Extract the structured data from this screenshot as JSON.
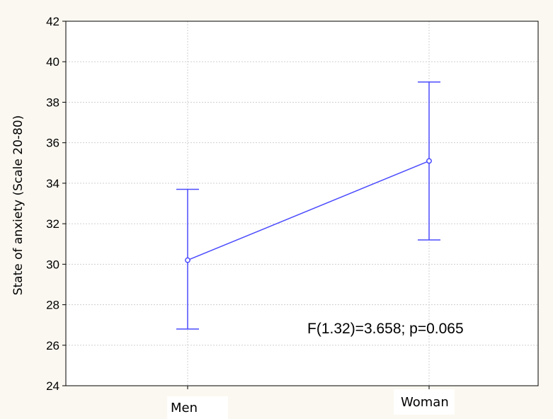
{
  "chart_data": {
    "type": "line",
    "categories": [
      "Men",
      "Woman"
    ],
    "series": [
      {
        "values": [
          30.2,
          35.1
        ],
        "error_low": [
          26.8,
          31.2
        ],
        "error_high": [
          33.7,
          39.0
        ],
        "color": "#4b4bff"
      }
    ],
    "ylabel": "State of anxiety (Scale 20-80)",
    "xlabel": "",
    "ylim": [
      24,
      42
    ],
    "yticks": [
      24,
      26,
      28,
      30,
      32,
      34,
      36,
      38,
      40,
      42
    ],
    "grid": true,
    "annotation": "F(1.32)=3.658; p=0.065"
  }
}
